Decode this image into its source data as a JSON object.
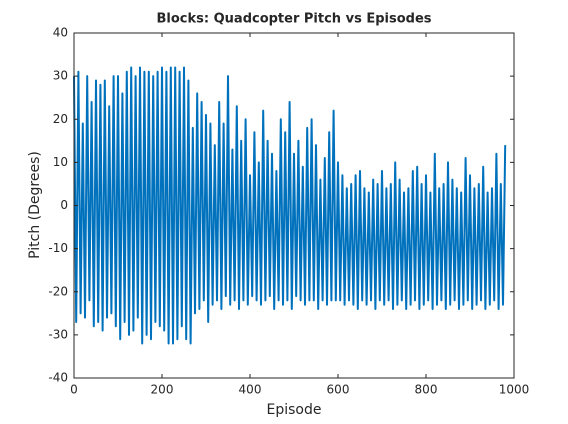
{
  "chart_data": {
    "type": "line",
    "title": "Blocks: Quadcopter Pitch vs Episodes",
    "xlabel": "Episode",
    "ylabel": "Pitch (Degrees)",
    "color": "#0072bd",
    "xlim": [
      0,
      1000
    ],
    "xticks": [
      0,
      200,
      400,
      600,
      800,
      1000
    ],
    "ylim": [
      -40,
      40
    ],
    "yticks": [
      -40,
      -30,
      -20,
      -10,
      0,
      10,
      20,
      30,
      40
    ],
    "grid": false,
    "x": [
      0,
      5,
      10,
      15,
      20,
      25,
      30,
      35,
      40,
      45,
      50,
      55,
      60,
      65,
      70,
      75,
      80,
      85,
      90,
      95,
      100,
      105,
      110,
      115,
      120,
      125,
      130,
      135,
      140,
      145,
      150,
      155,
      160,
      165,
      170,
      175,
      180,
      185,
      190,
      195,
      200,
      205,
      210,
      215,
      220,
      225,
      230,
      235,
      240,
      245,
      250,
      255,
      260,
      265,
      270,
      275,
      280,
      285,
      290,
      295,
      300,
      305,
      310,
      315,
      320,
      325,
      330,
      335,
      340,
      345,
      350,
      355,
      360,
      365,
      370,
      375,
      380,
      385,
      390,
      395,
      400,
      405,
      410,
      415,
      420,
      425,
      430,
      435,
      440,
      445,
      450,
      455,
      460,
      465,
      470,
      475,
      480,
      485,
      490,
      495,
      500,
      505,
      510,
      515,
      520,
      525,
      530,
      535,
      540,
      545,
      550,
      555,
      560,
      565,
      570,
      575,
      580,
      585,
      590,
      595,
      600,
      605,
      610,
      615,
      620,
      625,
      630,
      635,
      640,
      645,
      650,
      655,
      660,
      665,
      670,
      675,
      680,
      685,
      690,
      695,
      700,
      705,
      710,
      715,
      720,
      725,
      730,
      735,
      740,
      745,
      750,
      755,
      760,
      765,
      770,
      775,
      780,
      785,
      790,
      795,
      800,
      805,
      810,
      815,
      820,
      825,
      830,
      835,
      840,
      845,
      850,
      855,
      860,
      865,
      870,
      875,
      880,
      885,
      890,
      895,
      900,
      905,
      910,
      915,
      920,
      925,
      930,
      935,
      940,
      945,
      950,
      955,
      960,
      965,
      970,
      975,
      980
    ],
    "values": [
      30,
      -27,
      31,
      -25,
      19,
      -26,
      30,
      -22,
      24,
      -28,
      29,
      -27,
      28,
      -29,
      29,
      -26,
      23,
      -25,
      30,
      -28,
      30,
      -31,
      26,
      -27,
      31,
      -30,
      32,
      -29,
      30,
      -26,
      32,
      -32,
      31,
      -30,
      31,
      -31,
      30,
      -27,
      31,
      -28,
      32,
      -29,
      31,
      -32,
      32,
      -32,
      32,
      -31,
      31,
      -28,
      32,
      -31,
      29,
      -32,
      18,
      -25,
      26,
      -24,
      24,
      -22,
      21,
      -27,
      19,
      -23,
      14,
      -22,
      24,
      -24,
      19,
      -21,
      30,
      -23,
      13,
      -22,
      23,
      -24,
      15,
      -22,
      20,
      -23,
      7,
      -21,
      17,
      -22,
      10,
      -23,
      22,
      -22,
      15,
      -21,
      12,
      -24,
      8,
      -22,
      20,
      -23,
      17,
      -22,
      24,
      -24,
      12,
      -21,
      15,
      -22,
      9,
      -23,
      18,
      -22,
      20,
      -22,
      14,
      -24,
      6,
      -22,
      11,
      -23,
      17,
      -22,
      22,
      -22,
      10,
      -22,
      7,
      -23,
      4,
      -22,
      5,
      -23,
      7,
      -24,
      8,
      -22,
      4,
      -23,
      3,
      -22,
      6,
      -24,
      5,
      -22,
      8,
      -23,
      4,
      -22,
      5,
      -24,
      10,
      -23,
      6,
      -22,
      3,
      -24,
      4,
      -23,
      8,
      -22,
      9,
      -24,
      5,
      -23,
      7,
      -22,
      3,
      -24,
      12,
      -23,
      4,
      -22,
      5,
      -24,
      10,
      -23,
      6,
      -22,
      4,
      -24,
      3,
      -23,
      11,
      -22,
      7,
      -24,
      4,
      -23,
      5,
      -22,
      9,
      -24,
      3,
      -23,
      4,
      -22,
      12,
      -24,
      5,
      -23,
      14
    ]
  }
}
